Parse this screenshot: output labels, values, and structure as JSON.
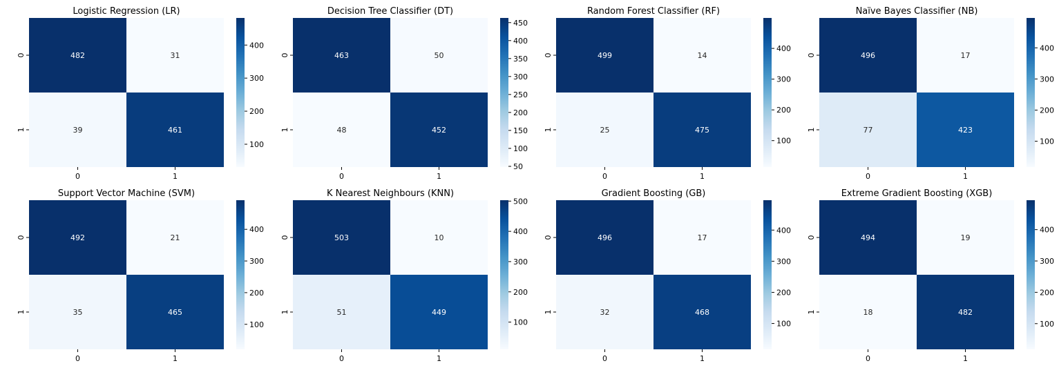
{
  "chart_data": [
    {
      "type": "heatmap",
      "title": "Logistic Regression (LR)",
      "x_ticks": [
        "0",
        "1"
      ],
      "y_ticks": [
        "0",
        "1"
      ],
      "matrix": [
        [
          482,
          31
        ],
        [
          39,
          461
        ]
      ],
      "colormap": "Blues",
      "colorbar_ticks": [
        "100",
        "200",
        "300",
        "400"
      ],
      "colorbar_range": [
        31,
        482
      ]
    },
    {
      "type": "heatmap",
      "title": "Decision Tree Classifier (DT)",
      "x_ticks": [
        "0",
        "1"
      ],
      "y_ticks": [
        "0",
        "1"
      ],
      "matrix": [
        [
          463,
          50
        ],
        [
          48,
          452
        ]
      ],
      "colormap": "Blues",
      "colorbar_ticks": [
        "50",
        "100",
        "150",
        "200",
        "250",
        "300",
        "350",
        "400",
        "450"
      ],
      "colorbar_range": [
        48,
        463
      ]
    },
    {
      "type": "heatmap",
      "title": "Random Forest Classifier (RF)",
      "x_ticks": [
        "0",
        "1"
      ],
      "y_ticks": [
        "0",
        "1"
      ],
      "matrix": [
        [
          499,
          14
        ],
        [
          25,
          475
        ]
      ],
      "colormap": "Blues",
      "colorbar_ticks": [
        "100",
        "200",
        "300",
        "400"
      ],
      "colorbar_range": [
        14,
        499
      ]
    },
    {
      "type": "heatmap",
      "title": "Naïve Bayes Classifier (NB)",
      "x_ticks": [
        "0",
        "1"
      ],
      "y_ticks": [
        "0",
        "1"
      ],
      "matrix": [
        [
          496,
          17
        ],
        [
          77,
          423
        ]
      ],
      "colormap": "Blues",
      "colorbar_ticks": [
        "100",
        "200",
        "300",
        "400"
      ],
      "colorbar_range": [
        17,
        496
      ]
    },
    {
      "type": "heatmap",
      "title": "Support Vector Machine (SVM)",
      "x_ticks": [
        "0",
        "1"
      ],
      "y_ticks": [
        "0",
        "1"
      ],
      "matrix": [
        [
          492,
          21
        ],
        [
          35,
          465
        ]
      ],
      "colormap": "Blues",
      "colorbar_ticks": [
        "100",
        "200",
        "300",
        "400"
      ],
      "colorbar_range": [
        21,
        492
      ]
    },
    {
      "type": "heatmap",
      "title": "K Nearest Neighbours (KNN)",
      "x_ticks": [
        "0",
        "1"
      ],
      "y_ticks": [
        "0",
        "1"
      ],
      "matrix": [
        [
          503,
          10
        ],
        [
          51,
          449
        ]
      ],
      "colormap": "Blues",
      "colorbar_ticks": [
        "100",
        "200",
        "300",
        "400",
        "500"
      ],
      "colorbar_range": [
        10,
        503
      ]
    },
    {
      "type": "heatmap",
      "title": "Gradient Boosting (GB)",
      "x_ticks": [
        "0",
        "1"
      ],
      "y_ticks": [
        "0",
        "1"
      ],
      "matrix": [
        [
          496,
          17
        ],
        [
          32,
          468
        ]
      ],
      "colormap": "Blues",
      "colorbar_ticks": [
        "100",
        "200",
        "300",
        "400"
      ],
      "colorbar_range": [
        17,
        496
      ]
    },
    {
      "type": "heatmap",
      "title": "Extreme Gradient Boosting (XGB)",
      "x_ticks": [
        "0",
        "1"
      ],
      "y_ticks": [
        "0",
        "1"
      ],
      "matrix": [
        [
          494,
          19
        ],
        [
          18,
          482
        ]
      ],
      "colormap": "Blues",
      "colorbar_ticks": [
        "100",
        "200",
        "300",
        "400"
      ],
      "colorbar_range": [
        18,
        494
      ]
    }
  ]
}
